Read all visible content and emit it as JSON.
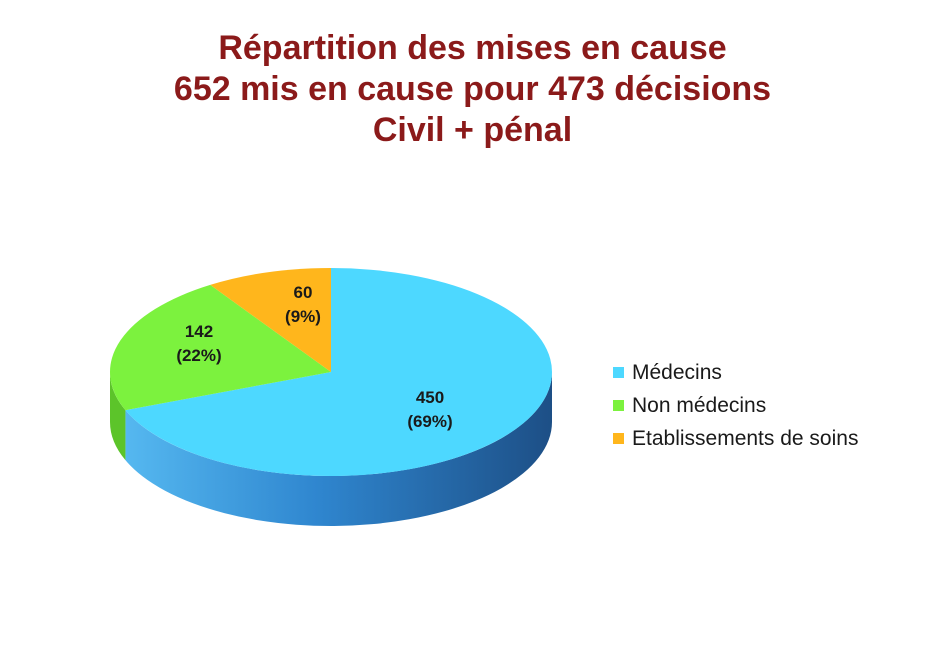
{
  "title": {
    "line1": "Répartition des mises en cause",
    "line2": "652 mis en cause pour 473 décisions",
    "line3": "Civil + pénal"
  },
  "chart_data": {
    "type": "pie",
    "labels": [
      "Médecins",
      "Non médecins",
      "Etablissements de soins"
    ],
    "values": [
      450,
      142,
      60
    ],
    "percent_labels": [
      "(69%)",
      "(22%)",
      "(9%)"
    ],
    "colors": [
      "#4dd8ff",
      "#7cf23e",
      "#ffb61c"
    ],
    "side_colors": [
      "#2f7fc4",
      "#5cc42a",
      "#d98d0c"
    ],
    "legend_position": "right",
    "three_d": true
  }
}
